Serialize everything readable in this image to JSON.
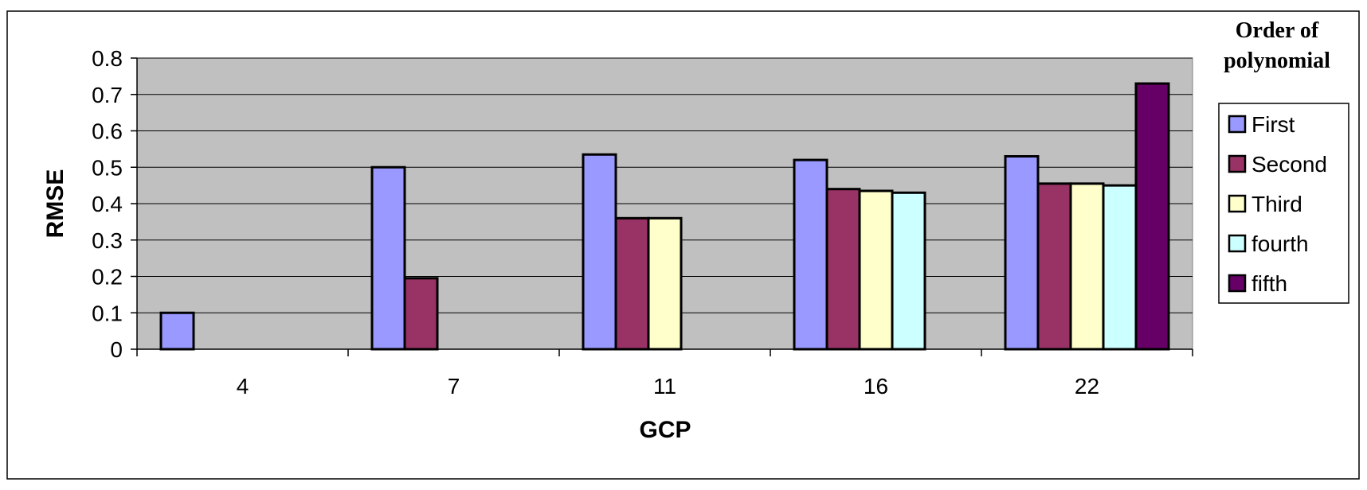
{
  "chart_data": {
    "type": "bar",
    "categories": [
      "4",
      "7",
      "11",
      "16",
      "22"
    ],
    "series": [
      {
        "name": "First",
        "values": [
          0.1,
          0.5,
          0.535,
          0.52,
          0.53
        ],
        "color": "#9999ff"
      },
      {
        "name": "Second",
        "values": [
          null,
          0.195,
          0.36,
          0.44,
          0.455
        ],
        "color": "#993366"
      },
      {
        "name": "Third",
        "values": [
          null,
          null,
          0.36,
          0.435,
          0.455
        ],
        "color": "#ffffcc"
      },
      {
        "name": "fourth",
        "values": [
          null,
          null,
          null,
          0.43,
          0.45
        ],
        "color": "#ccffff"
      },
      {
        "name": "fifth",
        "values": [
          null,
          null,
          null,
          null,
          0.73
        ],
        "color": "#660066"
      }
    ],
    "xlabel": "GCP",
    "ylabel": "RMSE",
    "ylim": [
      0,
      0.8
    ],
    "yticks": [
      "0",
      "0.1",
      "0.2",
      "0.3",
      "0.4",
      "0.5",
      "0.6",
      "0.7",
      "0.8"
    ],
    "grid": true,
    "plot_background": "#c0c0c0",
    "legend": {
      "title_line1": "Order of",
      "title_line2": "polynomial",
      "placement": "right"
    }
  }
}
